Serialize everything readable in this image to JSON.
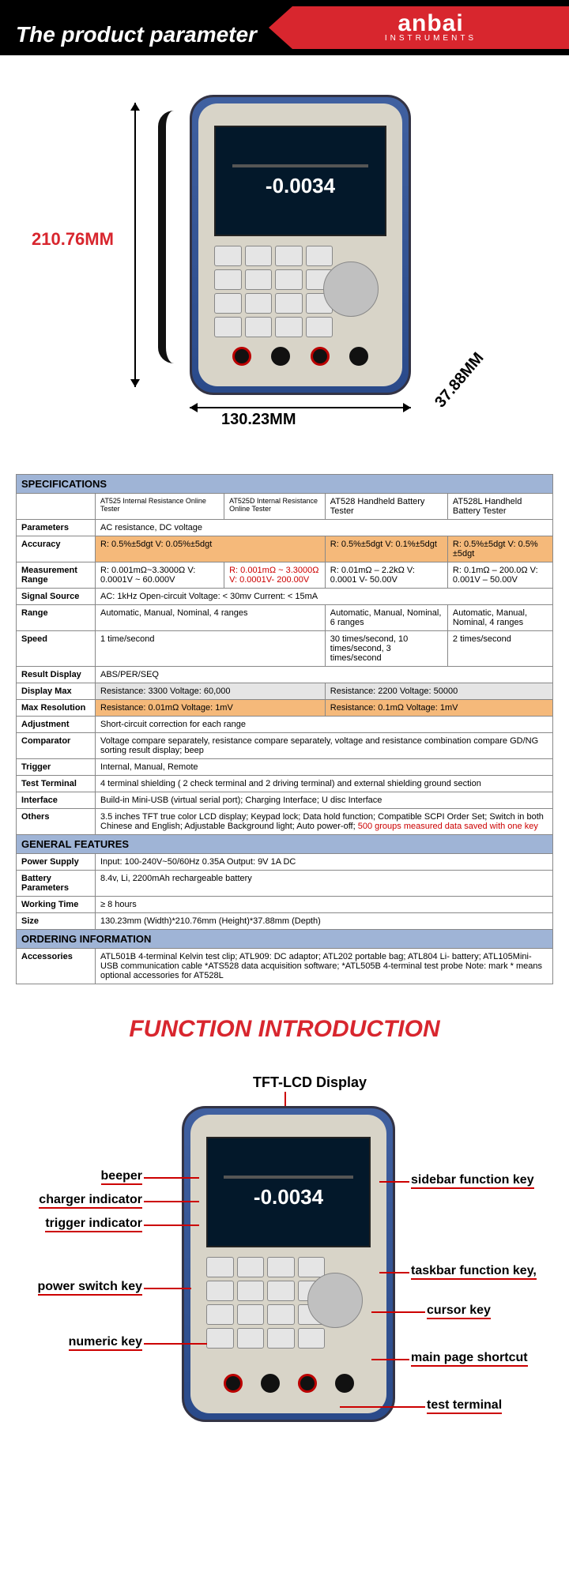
{
  "banner": {
    "title": "The product parameter",
    "brand": "anbai",
    "brand_sub": "INSTRUMENTS"
  },
  "device_screen": "-0.0034",
  "dimensions": {
    "height": "210.76MM",
    "width": "130.23MM",
    "depth": "37.88MM"
  },
  "spec": {
    "section1": "SPECIFICATIONS",
    "col_hdrs": [
      "AT525 Internal Resistance Online Tester",
      "AT525D Internal Resistance Online Tester",
      "AT528 Handheld Battery Tester",
      "AT528L Handheld Battery Tester"
    ],
    "rows": [
      {
        "p": "Parameters",
        "v": [
          "AC resistance, DC voltage"
        ],
        "span": 4
      },
      {
        "p": "Accuracy",
        "v": [
          "R: 0.5%±5dgt    V: 0.05%±5dgt",
          "",
          "R: 0.5%±5dgt V: 0.1%±5dgt",
          "R: 0.5%±5dgt V: 0.5%±5dgt"
        ],
        "span": 0,
        "hl": "orange",
        "merge12": true
      },
      {
        "p": "Measurement Range",
        "v": [
          "R: 0.001mΩ~3.3000Ω V: 0.0001V ~ 60.000V",
          "R: 0.001mΩ ~ 3.3000Ω\nV: 0.0001V- 200.00V",
          "R: 0.01mΩ – 2.2kΩ      V: 0.0001 V- 50.00V",
          "R: 0.1mΩ – 200.0Ω\nV: 0.001V – 50.00V"
        ],
        "span": 0,
        "redcell": 1
      },
      {
        "p": "Signal Source",
        "v": [
          "AC: 1kHz    Open-circuit Voltage: < 30mv    Current: < 15mA"
        ],
        "span": 4
      },
      {
        "p": "Range",
        "v": [
          "Automatic, Manual, Nominal, 4 ranges",
          "",
          "Automatic, Manual, Nominal, 6 ranges",
          "Automatic, Manual, Nominal, 4 ranges"
        ],
        "span": 0,
        "merge12": true
      },
      {
        "p": "Speed",
        "v": [
          "1 time/second",
          "",
          "30 times/second, 10 times/second, 3 times/second",
          "2 times/second"
        ],
        "span": 0,
        "merge12": true
      },
      {
        "p": "Result Display",
        "v": [
          "ABS/PER/SEQ"
        ],
        "span": 4
      },
      {
        "p": "Display Max",
        "v": [
          "Resistance: 3300        Voltage: 60,000",
          "",
          "Resistance: 2200      Voltage: 50000",
          ""
        ],
        "span": 0,
        "hl": "gray",
        "merge12": true,
        "merge34": true
      },
      {
        "p": "Max Resolution",
        "v": [
          "Resistance: 0.01mΩ    Voltage: 1mV",
          "",
          "Resistance: 0.1mΩ    Voltage: 1mV",
          ""
        ],
        "span": 0,
        "hl": "orange",
        "merge12": true,
        "merge34": true
      },
      {
        "p": "Adjustment",
        "v": [
          "Short-circuit correction for each range"
        ],
        "span": 4
      },
      {
        "p": "Comparator",
        "v": [
          "Voltage compare separately, resistance compare separately, voltage and resistance combination compare    GD/NG sorting result display; beep"
        ],
        "span": 4
      },
      {
        "p": "Trigger",
        "v": [
          "Internal, Manual, Remote"
        ],
        "span": 4
      },
      {
        "p": "Test Terminal",
        "v": [
          "4 terminal shielding   ( 2 check terminal and 2 driving terminal) and external shielding ground section"
        ],
        "span": 4
      },
      {
        "p": "Interface",
        "v": [
          "Build-in Mini-USB (virtual serial port); Charging Interface; U disc Interface"
        ],
        "span": 4
      },
      {
        "p": "Others",
        "v": [
          "3.5 inches TFT true color LCD display; Keypad lock; Data hold function; Compatible SCPI Order Set; Switch in both Chinese and English; Adjustable Background light; Auto power-off; 500 groups measured data saved with one key"
        ],
        "span": 4,
        "redtail": "500 groups measured data saved with one key"
      }
    ],
    "section2": "GENERAL FEATURES",
    "gen": [
      {
        "p": "Power Supply",
        "v": "Input: 100-240V~50/60Hz    0.35A       Output: 9V 1A DC"
      },
      {
        "p": "Battery Parameters",
        "v": "8.4v, Li, 2200mAh rechargeable battery"
      },
      {
        "p": "Working Time",
        "v": "≥ 8 hours"
      },
      {
        "p": "Size",
        "v": "130.23mm (Width)*210.76mm (Height)*37.88mm (Depth)"
      }
    ],
    "section3": "ORDERING INFORMATION",
    "order": {
      "p": "Accessories",
      "v": "ATL501B 4-terminal Kelvin test clip; ATL909: DC adaptor; ATL202 portable bag; ATL804 Li- battery; ATL105Mini-USB communication cable *ATS528 data acquisition software; *ATL505B 4-terminal test probe   Note: mark * means optional accessories for AT528L"
    }
  },
  "func": {
    "title": "FUNCTION INTRODUCTION",
    "tft": "TFT-LCD Display",
    "left": [
      "beeper",
      "charger indicator",
      "trigger indicator",
      "power switch key",
      "numeric key"
    ],
    "right": [
      "sidebar function key",
      "taskbar function key,",
      "cursor key",
      "main page shortcut",
      "test terminal"
    ]
  }
}
